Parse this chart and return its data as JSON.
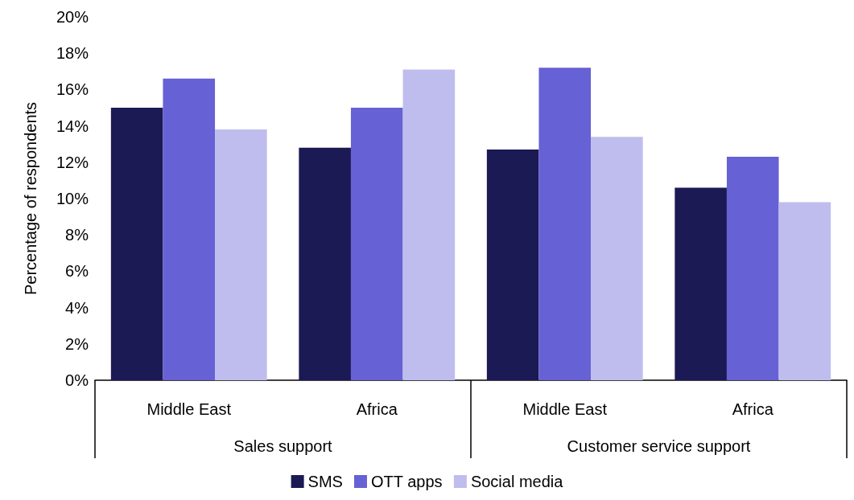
{
  "chart_data": {
    "type": "bar",
    "ylabel": "Percentage of respondents",
    "categories": [
      "Middle East",
      "Africa",
      "Middle East",
      "Africa"
    ],
    "annotations": [
      "Sales support",
      "Customer service support"
    ],
    "series": [
      {
        "name": "SMS",
        "color": "#1b1a55",
        "values": [
          15.0,
          12.8,
          12.7,
          10.6
        ]
      },
      {
        "name": "OTT apps",
        "color": "#6661d4",
        "values": [
          16.6,
          15.0,
          17.2,
          12.3
        ]
      },
      {
        "name": "Social media",
        "color": "#bfbdee",
        "values": [
          13.8,
          17.1,
          13.4,
          9.8
        ]
      }
    ],
    "ylim": [
      0,
      20
    ],
    "yticks": [
      {
        "value": 0,
        "label": "0%"
      },
      {
        "value": 2,
        "label": "2%"
      },
      {
        "value": 4,
        "label": "4%"
      },
      {
        "value": 6,
        "label": "6%"
      },
      {
        "value": 8,
        "label": "8%"
      },
      {
        "value": 10,
        "label": "10%"
      },
      {
        "value": 12,
        "label": "12%"
      },
      {
        "value": 14,
        "label": "14%"
      },
      {
        "value": 16,
        "label": "16%"
      },
      {
        "value": 18,
        "label": "18%"
      },
      {
        "value": 20,
        "label": "20%"
      }
    ],
    "grid": false,
    "legend": "bottom"
  }
}
